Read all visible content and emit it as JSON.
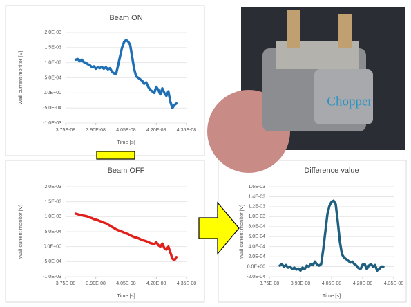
{
  "chart_data": [
    {
      "type": "line",
      "title": "Beam ON",
      "xlabel": "Time [s]",
      "ylabel": "Wall current monitor [V]",
      "color": "#1f6fb5",
      "grid": true,
      "x": [
        3.8e-08,
        3.81e-08,
        3.82e-08,
        3.83e-08,
        3.84e-08,
        3.85e-08,
        3.86e-08,
        3.87e-08,
        3.88e-08,
        3.89e-08,
        3.9e-08,
        3.91e-08,
        3.92e-08,
        3.93e-08,
        3.94e-08,
        3.95e-08,
        3.96e-08,
        3.97e-08,
        3.98e-08,
        3.99e-08,
        4e-08,
        4.01e-08,
        4.02e-08,
        4.03e-08,
        4.04e-08,
        4.05e-08,
        4.06e-08,
        4.07e-08,
        4.08e-08,
        4.09e-08,
        4.1e-08,
        4.11e-08,
        4.12e-08,
        4.13e-08,
        4.14e-08,
        4.15e-08,
        4.16e-08,
        4.17e-08,
        4.18e-08,
        4.19e-08,
        4.2e-08,
        4.21e-08,
        4.22e-08,
        4.23e-08,
        4.24e-08,
        4.25e-08,
        4.26e-08,
        4.27e-08,
        4.28e-08,
        4.29e-08,
        4.3e-08
      ],
      "values": [
        0.0011,
        0.00112,
        0.00105,
        0.0011,
        0.00102,
        0.001,
        0.00095,
        0.00092,
        0.00085,
        0.00088,
        0.0008,
        0.00085,
        0.00082,
        0.00086,
        0.0008,
        0.00085,
        0.00078,
        0.00082,
        0.0007,
        0.00065,
        0.00062,
        0.0009,
        0.0012,
        0.0015,
        0.00168,
        0.00175,
        0.0017,
        0.0016,
        0.0012,
        0.0008,
        0.00055,
        0.0005,
        0.00045,
        0.0004,
        0.0003,
        0.00035,
        0.0002,
        0.0001,
        5e-05,
        0,
        0.0002,
        0.0001,
        -5e-05,
        0.00015,
        0,
        -0.0001,
        5e-05,
        -0.0003,
        -0.0005,
        -0.0004,
        -0.00035
      ],
      "xlim": [
        3.75e-08,
        4.35e-08
      ],
      "xticks": [
        {
          "value": 3.75e-08,
          "label": "3.75E-08"
        },
        {
          "value": 3.9e-08,
          "label": "3.90E-08"
        },
        {
          "value": 4.05e-08,
          "label": "4.05E-08"
        },
        {
          "value": 4.2e-08,
          "label": "4.20E-08"
        },
        {
          "value": 4.35e-08,
          "label": "4.35E-08"
        }
      ],
      "ylim": [
        -0.001,
        0.002
      ],
      "yticks": [
        {
          "value": 0.002,
          "label": "2.0E-03"
        },
        {
          "value": 0.0015,
          "label": "1.5E-03"
        },
        {
          "value": 0.001,
          "label": "1.0E-03"
        },
        {
          "value": 0.0005,
          "label": "5.0E-04"
        },
        {
          "value": 0,
          "label": "0.0E+00"
        },
        {
          "value": -0.0005,
          "label": "-5.0E-04"
        },
        {
          "value": -0.001,
          "label": "-1.0E-03"
        }
      ]
    },
    {
      "type": "line",
      "title": "Beam OFF",
      "xlabel": "Time [s]",
      "ylabel": "Wall current monitor [V]",
      "color": "#e0201b",
      "grid": true,
      "x": [
        3.8e-08,
        3.81e-08,
        3.82e-08,
        3.83e-08,
        3.84e-08,
        3.85e-08,
        3.86e-08,
        3.87e-08,
        3.88e-08,
        3.89e-08,
        3.9e-08,
        3.91e-08,
        3.92e-08,
        3.93e-08,
        3.94e-08,
        3.95e-08,
        3.96e-08,
        3.97e-08,
        3.98e-08,
        3.99e-08,
        4e-08,
        4.01e-08,
        4.02e-08,
        4.03e-08,
        4.04e-08,
        4.05e-08,
        4.06e-08,
        4.07e-08,
        4.08e-08,
        4.09e-08,
        4.1e-08,
        4.11e-08,
        4.12e-08,
        4.13e-08,
        4.14e-08,
        4.15e-08,
        4.16e-08,
        4.17e-08,
        4.18e-08,
        4.19e-08,
        4.2e-08,
        4.21e-08,
        4.22e-08,
        4.23e-08,
        4.24e-08,
        4.25e-08,
        4.26e-08,
        4.27e-08,
        4.28e-08,
        4.29e-08,
        4.3e-08
      ],
      "values": [
        0.0011,
        0.00108,
        0.00106,
        0.00105,
        0.00103,
        0.00102,
        0.001,
        0.00097,
        0.00095,
        0.00092,
        0.0009,
        0.00088,
        0.00085,
        0.00083,
        0.0008,
        0.00078,
        0.00074,
        0.0007,
        0.00066,
        0.00062,
        0.00058,
        0.00055,
        0.00052,
        0.0005,
        0.00047,
        0.00044,
        0.00042,
        0.00038,
        0.00035,
        0.00032,
        0.0003,
        0.00028,
        0.00025,
        0.00022,
        0.0002,
        0.00018,
        0.00015,
        0.00012,
        0.0001,
        8e-05,
        0.00015,
        5e-05,
        0,
        0.0001,
        -5e-05,
        -0.0001,
        0,
        -0.0002,
        -0.0004,
        -0.00045,
        -0.00035
      ],
      "xlim": [
        3.75e-08,
        4.35e-08
      ],
      "xticks": [
        {
          "value": 3.75e-08,
          "label": "3.75E-08"
        },
        {
          "value": 3.9e-08,
          "label": "3.90E-08"
        },
        {
          "value": 4.05e-08,
          "label": "4.05E-08"
        },
        {
          "value": 4.2e-08,
          "label": "4.20E-08"
        },
        {
          "value": 4.35e-08,
          "label": "4.35E-08"
        }
      ],
      "ylim": [
        -0.001,
        0.002
      ],
      "yticks": [
        {
          "value": 0.002,
          "label": "2.0E-03"
        },
        {
          "value": 0.0015,
          "label": "1.5E-03"
        },
        {
          "value": 0.001,
          "label": "1.0E-03"
        },
        {
          "value": 0.0005,
          "label": "5.0E-04"
        },
        {
          "value": 0,
          "label": "0.0E+00"
        },
        {
          "value": -0.0005,
          "label": "-5.0E-04"
        },
        {
          "value": -0.001,
          "label": "-1.0E-03"
        }
      ]
    },
    {
      "type": "line",
      "title": "Difference value",
      "xlabel": "Time [s]",
      "ylabel": "Wall current monitor [V]",
      "color": "#1f5f7f",
      "grid": true,
      "x": [
        3.8e-08,
        3.81e-08,
        3.82e-08,
        3.83e-08,
        3.84e-08,
        3.85e-08,
        3.86e-08,
        3.87e-08,
        3.88e-08,
        3.89e-08,
        3.9e-08,
        3.91e-08,
        3.92e-08,
        3.93e-08,
        3.94e-08,
        3.95e-08,
        3.96e-08,
        3.97e-08,
        3.98e-08,
        3.99e-08,
        4e-08,
        4.01e-08,
        4.02e-08,
        4.03e-08,
        4.04e-08,
        4.05e-08,
        4.06e-08,
        4.07e-08,
        4.08e-08,
        4.09e-08,
        4.1e-08,
        4.11e-08,
        4.12e-08,
        4.13e-08,
        4.14e-08,
        4.15e-08,
        4.16e-08,
        4.17e-08,
        4.18e-08,
        4.19e-08,
        4.2e-08,
        4.21e-08,
        4.22e-08,
        4.23e-08,
        4.24e-08,
        4.25e-08,
        4.26e-08,
        4.27e-08,
        4.28e-08,
        4.29e-08,
        4.3e-08
      ],
      "values": [
        2e-05,
        5e-05,
        0,
        3e-05,
        -2e-05,
        0,
        -5e-05,
        -2e-05,
        -6e-05,
        -4e-05,
        -8e-05,
        -2e-05,
        -5e-05,
        2e-05,
        0,
        5e-05,
        3e-05,
        0.0001,
        4e-05,
        2e-05,
        5e-05,
        0.00035,
        0.0007,
        0.00105,
        0.00122,
        0.0013,
        0.00132,
        0.00125,
        0.0009,
        0.0005,
        0.00025,
        0.00018,
        0.00015,
        0.00012,
        8e-05,
        0.0001,
        5e-05,
        2e-05,
        -3e-05,
        -5e-05,
        4e-05,
        5e-05,
        -5e-05,
        2e-05,
        5e-05,
        0,
        3e-05,
        -8e-05,
        -5e-05,
        0,
        0
      ],
      "xlim": [
        3.75e-08,
        4.35e-08
      ],
      "xticks": [
        {
          "value": 3.75e-08,
          "label": "3.75E-08"
        },
        {
          "value": 3.9e-08,
          "label": "3.90E-08"
        },
        {
          "value": 4.05e-08,
          "label": "4.05E-08"
        },
        {
          "value": 4.2e-08,
          "label": "4.20E-08"
        },
        {
          "value": 4.35e-08,
          "label": "4.35E-08"
        }
      ],
      "ylim": [
        -0.0002,
        0.0016
      ],
      "yticks": [
        {
          "value": 0.0016,
          "label": "1.6E-03"
        },
        {
          "value": 0.0014,
          "label": "1.4E-03"
        },
        {
          "value": 0.0012,
          "label": "1.2E-03"
        },
        {
          "value": 0.001,
          "label": "1.0E-03"
        },
        {
          "value": 0.0008,
          "label": "8.0E-04"
        },
        {
          "value": 0.0006,
          "label": "6.0E-04"
        },
        {
          "value": 0.0004,
          "label": "4.0E-04"
        },
        {
          "value": 0.0002,
          "label": "2.0E-04"
        },
        {
          "value": 0,
          "label": "0.0E+00"
        },
        {
          "value": -0.0002,
          "label": "-2.0E-04"
        }
      ]
    }
  ],
  "photo": {
    "label": "Chopper"
  }
}
